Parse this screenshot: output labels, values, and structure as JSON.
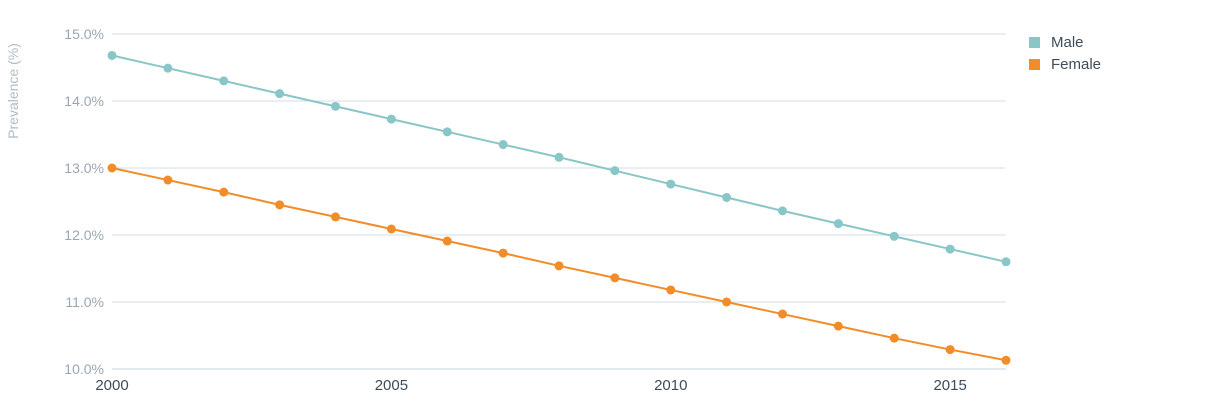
{
  "chart_data": {
    "type": "line",
    "title": "",
    "xlabel": "",
    "ylabel": "Prevalence (%)",
    "x": [
      2000,
      2001,
      2002,
      2003,
      2004,
      2005,
      2006,
      2007,
      2008,
      2009,
      2010,
      2011,
      2012,
      2013,
      2014,
      2015,
      2016
    ],
    "xticks": [
      {
        "value": 2000,
        "label": "2000"
      },
      {
        "value": 2005,
        "label": "2005"
      },
      {
        "value": 2010,
        "label": "2010"
      },
      {
        "value": 2015,
        "label": "2015"
      }
    ],
    "xlim": [
      2000,
      2016
    ],
    "ylim": [
      10,
      15
    ],
    "yticks": [
      {
        "value": 10,
        "label": "10.0%"
      },
      {
        "value": 11,
        "label": "11.0%"
      },
      {
        "value": 12,
        "label": "12.0%"
      },
      {
        "value": 13,
        "label": "13.0%"
      },
      {
        "value": 14,
        "label": "14.0%"
      },
      {
        "value": 15,
        "label": "15.0%"
      }
    ],
    "grid": true,
    "legend_position": "top-right",
    "series": [
      {
        "name": "Male",
        "color": "#88c6c7",
        "values": [
          14.68,
          14.49,
          14.3,
          14.11,
          13.92,
          13.73,
          13.54,
          13.35,
          13.16,
          12.96,
          12.76,
          12.56,
          12.36,
          12.17,
          11.98,
          11.79,
          11.6
        ]
      },
      {
        "name": "Female",
        "color": "#f28c28",
        "values": [
          13.0,
          12.82,
          12.64,
          12.45,
          12.27,
          12.09,
          11.91,
          11.73,
          11.54,
          11.36,
          11.18,
          11.0,
          10.82,
          10.64,
          10.46,
          10.29,
          10.13
        ]
      }
    ]
  },
  "colors": {
    "gridline": "#d6dee6",
    "axis_line": "#c7d0d9"
  }
}
